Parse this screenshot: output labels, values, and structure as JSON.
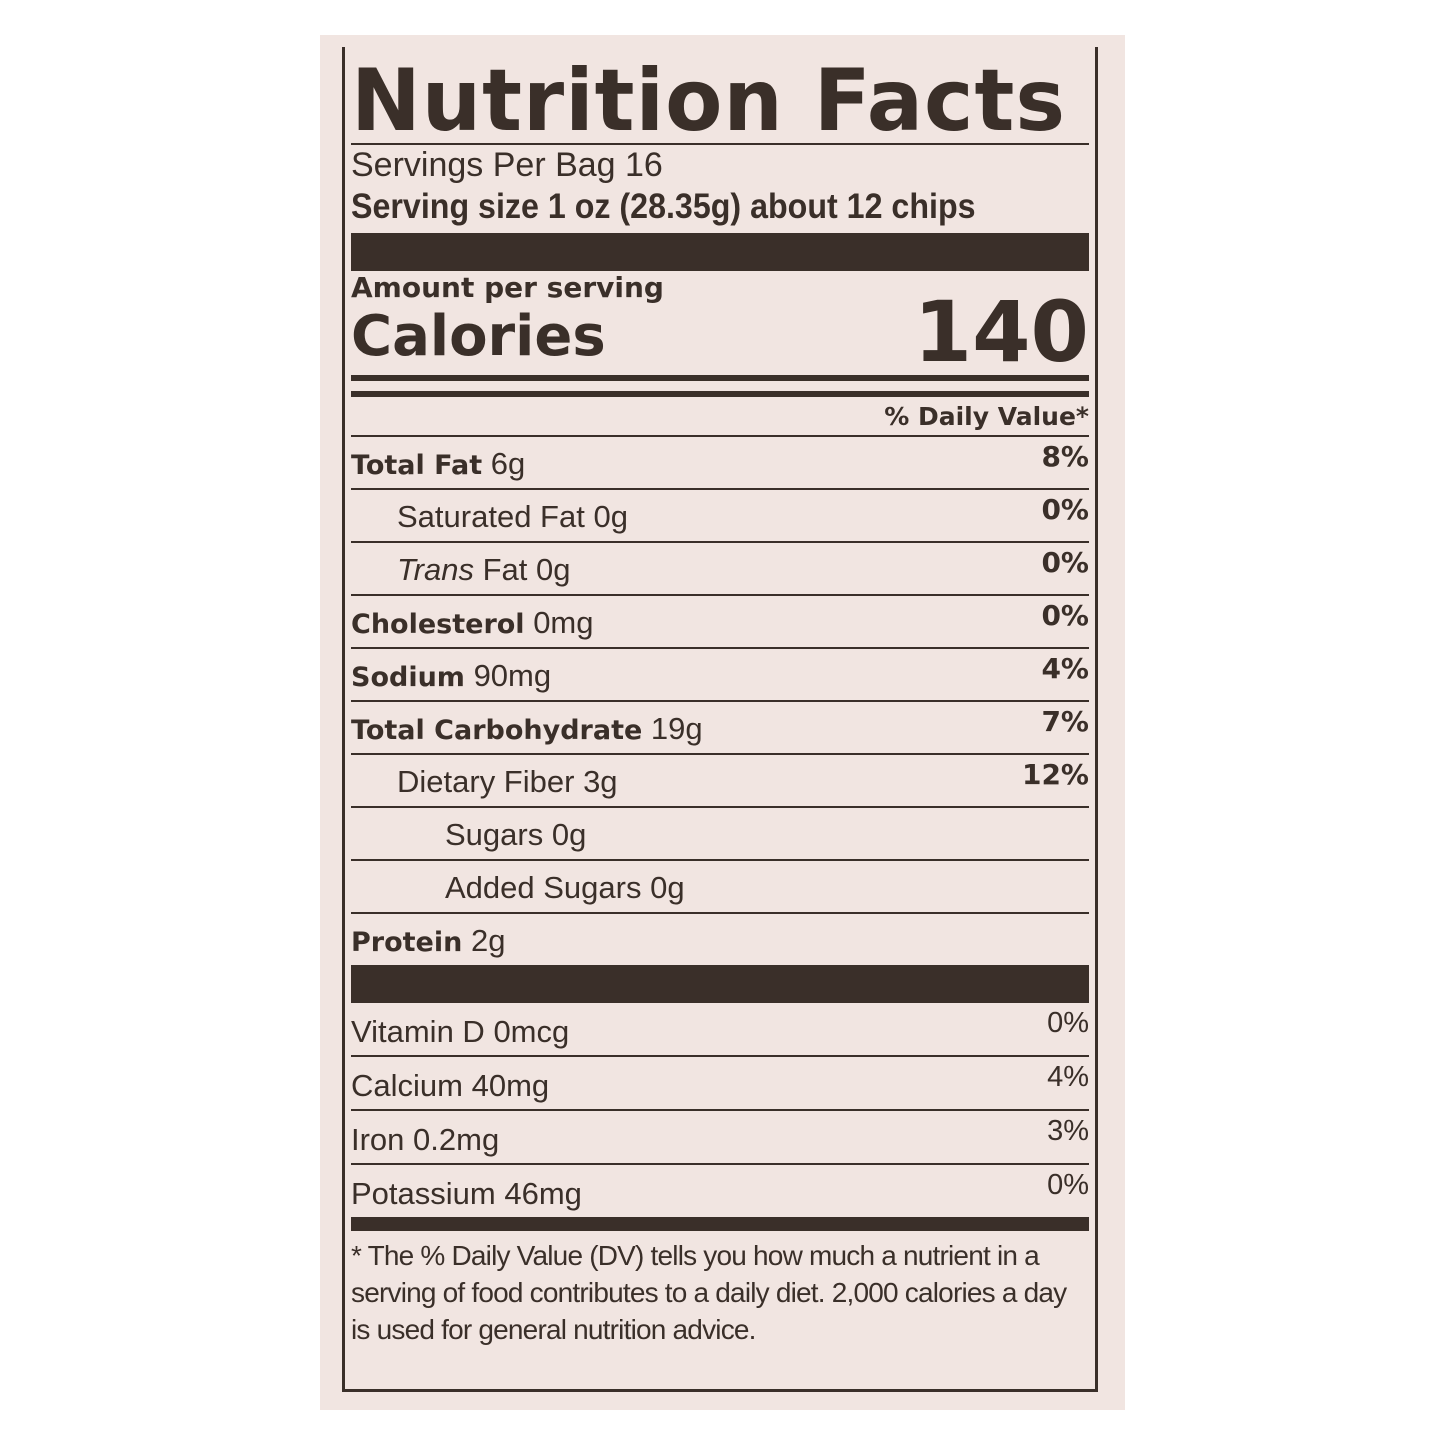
{
  "title": "Nutrition Facts",
  "servings_per_container": "Servings Per Bag 16",
  "serving_size": "Serving size 1 oz  (28.35g) about 12 chips",
  "amount_per_serving": "Amount per serving",
  "calories_label": "Calories",
  "calories_value": "140",
  "daily_value_header": "% Daily Value*",
  "nutrients": [
    {
      "name": "Total Fat",
      "amount": "6g",
      "dv": "8%",
      "bold": true,
      "indent": 0
    },
    {
      "name": "Saturated Fat",
      "amount": "0g",
      "dv": "0%",
      "bold": false,
      "indent": 1
    },
    {
      "name": "Trans",
      "name_suffix": "Fat",
      "amount": "0g",
      "dv": "0%",
      "bold": false,
      "indent": 1
    },
    {
      "name": "Cholesterol",
      "amount": "0mg",
      "dv": "0%",
      "bold": true,
      "indent": 0
    },
    {
      "name": "Sodium",
      "amount": "90mg",
      "dv": "4%",
      "bold": true,
      "indent": 0
    },
    {
      "name": "Total Carbohydrate",
      "amount": "19g",
      "dv": "7%",
      "bold": true,
      "indent": 0
    },
    {
      "name": "Dietary Fiber",
      "amount": "3g",
      "dv": "12%",
      "bold": false,
      "indent": 1
    },
    {
      "name": "Sugars",
      "amount": "0g",
      "dv": "",
      "bold": false,
      "indent": 2
    },
    {
      "name": "Added Sugars",
      "amount": "0g",
      "dv": "",
      "bold": false,
      "indent": 2
    },
    {
      "name": "Protein",
      "amount": "2g",
      "dv": "",
      "bold": true,
      "indent": 0
    }
  ],
  "vitamins": [
    {
      "name": "Vitamin D",
      "amount": "0mcg",
      "dv": "0%"
    },
    {
      "name": "Calcium",
      "amount": "40mg",
      "dv": "4%"
    },
    {
      "name": "Iron",
      "amount": "0.2mg",
      "dv": "3%"
    },
    {
      "name": "Potassium",
      "amount": "46mg",
      "dv": "0%"
    }
  ],
  "footnote": "* The % Daily Value (DV) tells you how much a nutrient in a serving of food contributes to a daily diet. 2,000 calories a day is used for general nutrition advice.",
  "colors": {
    "ink": "#3a2f29",
    "label_background": "#f1e5e1"
  }
}
